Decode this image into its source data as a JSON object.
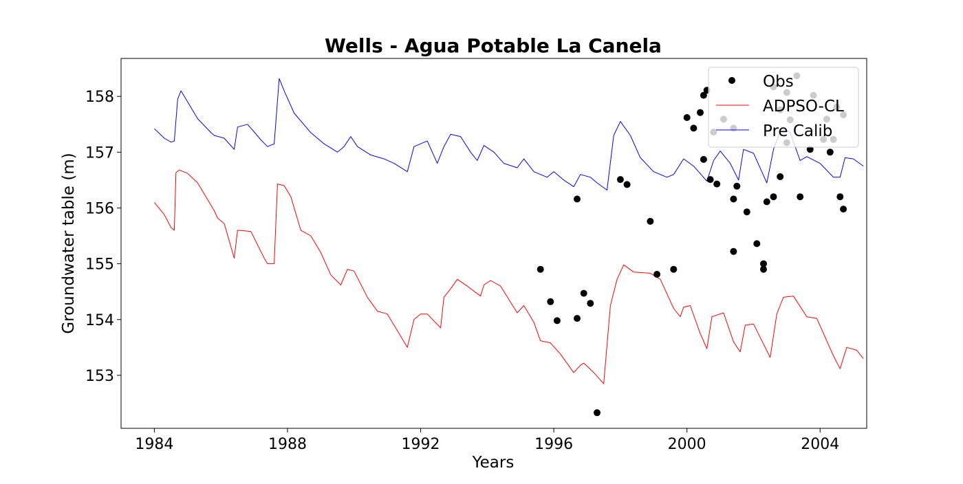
{
  "chart_data": {
    "type": "line",
    "title": "Wells - Agua Potable La Canela",
    "xlabel": "Years",
    "ylabel": "Groundwater table (m)",
    "xlim": [
      1983.0,
      2005.4
    ],
    "ylim": [
      152.05,
      158.68
    ],
    "xticks": [
      1984,
      1988,
      1992,
      1996,
      2000,
      2004
    ],
    "yticks": [
      153,
      154,
      155,
      156,
      157,
      158
    ],
    "grid": false,
    "legend_position": "top-right",
    "legend": [
      "Obs",
      "ADPSO-CL",
      "Pre Calib"
    ],
    "series": [
      {
        "name": "Obs",
        "kind": "scatter",
        "color": "#000000",
        "points": [
          [
            1995.6,
            154.9
          ],
          [
            1995.9,
            154.32
          ],
          [
            1996.1,
            153.98
          ],
          [
            1996.7,
            154.02
          ],
          [
            1996.7,
            156.16
          ],
          [
            1996.9,
            154.47
          ],
          [
            1997.1,
            154.29
          ],
          [
            1997.3,
            152.33
          ],
          [
            1998.0,
            156.51
          ],
          [
            1998.2,
            156.42
          ],
          [
            1998.9,
            155.76
          ],
          [
            1999.1,
            154.81
          ],
          [
            1999.6,
            154.9
          ],
          [
            2000.0,
            157.62
          ],
          [
            2000.2,
            157.43
          ],
          [
            2000.4,
            157.71
          ],
          [
            2000.5,
            158.02
          ],
          [
            2000.5,
            156.87
          ],
          [
            2000.6,
            158.11
          ],
          [
            2000.7,
            156.51
          ],
          [
            2000.8,
            157.36
          ],
          [
            2000.9,
            156.43
          ],
          [
            2001.1,
            157.59
          ],
          [
            2001.4,
            157.43
          ],
          [
            2001.4,
            156.16
          ],
          [
            2001.4,
            155.22
          ],
          [
            2001.5,
            156.39
          ],
          [
            2001.8,
            155.93
          ],
          [
            2002.1,
            155.36
          ],
          [
            2002.3,
            155.0
          ],
          [
            2002.3,
            154.9
          ],
          [
            2002.4,
            156.11
          ],
          [
            2002.6,
            158.17
          ],
          [
            2002.6,
            156.2
          ],
          [
            2002.8,
            156.56
          ],
          [
            2002.8,
            157.76
          ],
          [
            2003.0,
            158.07
          ],
          [
            2003.0,
            157.17
          ],
          [
            2003.1,
            157.58
          ],
          [
            2003.3,
            158.37
          ],
          [
            2003.4,
            156.2
          ],
          [
            2003.7,
            157.05
          ],
          [
            2003.8,
            158.02
          ],
          [
            2004.1,
            157.23
          ],
          [
            2004.2,
            157.59
          ],
          [
            2004.3,
            157.0
          ],
          [
            2004.4,
            157.23
          ],
          [
            2004.5,
            157.81
          ],
          [
            2004.6,
            156.2
          ],
          [
            2004.7,
            157.67
          ],
          [
            2004.7,
            155.98
          ]
        ]
      },
      {
        "name": "ADPSO-CL",
        "kind": "line",
        "color": "#ff0000",
        "points": [
          [
            1984.0,
            156.1
          ],
          [
            1984.3,
            155.88
          ],
          [
            1984.5,
            155.65
          ],
          [
            1984.6,
            155.6
          ],
          [
            1984.65,
            156.63
          ],
          [
            1984.75,
            156.68
          ],
          [
            1985.0,
            156.62
          ],
          [
            1985.3,
            156.45
          ],
          [
            1985.8,
            155.95
          ],
          [
            1985.9,
            155.82
          ],
          [
            1986.1,
            155.72
          ],
          [
            1986.4,
            155.1
          ],
          [
            1986.5,
            155.6
          ],
          [
            1986.9,
            155.58
          ],
          [
            1987.3,
            155.1
          ],
          [
            1987.4,
            155.0
          ],
          [
            1987.6,
            155.0
          ],
          [
            1987.7,
            156.43
          ],
          [
            1987.9,
            156.4
          ],
          [
            1988.1,
            156.2
          ],
          [
            1988.4,
            155.6
          ],
          [
            1988.7,
            155.5
          ],
          [
            1989.0,
            155.2
          ],
          [
            1989.3,
            154.8
          ],
          [
            1989.6,
            154.62
          ],
          [
            1989.8,
            154.9
          ],
          [
            1990.0,
            154.87
          ],
          [
            1990.4,
            154.4
          ],
          [
            1990.7,
            154.15
          ],
          [
            1991.0,
            154.1
          ],
          [
            1991.3,
            153.8
          ],
          [
            1991.6,
            153.5
          ],
          [
            1991.8,
            154.0
          ],
          [
            1992.0,
            154.1
          ],
          [
            1992.2,
            154.1
          ],
          [
            1992.6,
            153.85
          ],
          [
            1992.7,
            154.4
          ],
          [
            1992.9,
            154.55
          ],
          [
            1993.1,
            154.72
          ],
          [
            1993.4,
            154.6
          ],
          [
            1993.8,
            154.42
          ],
          [
            1993.9,
            154.62
          ],
          [
            1994.1,
            154.7
          ],
          [
            1994.4,
            154.6
          ],
          [
            1994.9,
            154.12
          ],
          [
            1995.1,
            154.25
          ],
          [
            1995.4,
            153.95
          ],
          [
            1995.6,
            153.62
          ],
          [
            1995.9,
            153.58
          ],
          [
            1996.2,
            153.38
          ],
          [
            1996.6,
            153.05
          ],
          [
            1996.8,
            153.18
          ],
          [
            1996.9,
            153.22
          ],
          [
            1997.2,
            153.05
          ],
          [
            1997.5,
            152.85
          ],
          [
            1997.7,
            154.25
          ],
          [
            1997.9,
            154.72
          ],
          [
            1998.1,
            154.98
          ],
          [
            1998.4,
            154.85
          ],
          [
            1998.9,
            154.83
          ],
          [
            1999.2,
            154.72
          ],
          [
            1999.6,
            154.2
          ],
          [
            1999.8,
            154.05
          ],
          [
            1999.9,
            154.22
          ],
          [
            2000.1,
            154.25
          ],
          [
            2000.4,
            153.75
          ],
          [
            2000.6,
            153.48
          ],
          [
            2000.75,
            154.05
          ],
          [
            2001.1,
            154.12
          ],
          [
            2001.4,
            153.6
          ],
          [
            2001.6,
            153.42
          ],
          [
            2001.75,
            153.9
          ],
          [
            2002.0,
            153.92
          ],
          [
            2002.5,
            153.32
          ],
          [
            2002.7,
            154.1
          ],
          [
            2002.9,
            154.4
          ],
          [
            2003.2,
            154.42
          ],
          [
            2003.6,
            154.05
          ],
          [
            2003.9,
            154.02
          ],
          [
            2004.4,
            153.35
          ],
          [
            2004.6,
            153.12
          ],
          [
            2004.8,
            153.5
          ],
          [
            2005.1,
            153.45
          ],
          [
            2005.3,
            153.3
          ]
        ]
      },
      {
        "name": "Pre Calib",
        "kind": "line",
        "color": "#0000ff",
        "points": [
          [
            1984.0,
            157.42
          ],
          [
            1984.3,
            157.25
          ],
          [
            1984.5,
            157.18
          ],
          [
            1984.6,
            157.2
          ],
          [
            1984.7,
            157.95
          ],
          [
            1984.8,
            158.1
          ],
          [
            1985.0,
            157.9
          ],
          [
            1985.3,
            157.6
          ],
          [
            1985.7,
            157.35
          ],
          [
            1985.8,
            157.3
          ],
          [
            1986.1,
            157.25
          ],
          [
            1986.4,
            157.05
          ],
          [
            1986.5,
            157.45
          ],
          [
            1986.8,
            157.5
          ],
          [
            1987.2,
            157.22
          ],
          [
            1987.4,
            157.1
          ],
          [
            1987.6,
            157.15
          ],
          [
            1987.75,
            158.32
          ],
          [
            1987.9,
            158.1
          ],
          [
            1988.2,
            157.7
          ],
          [
            1988.7,
            157.35
          ],
          [
            1989.1,
            157.15
          ],
          [
            1989.5,
            157.0
          ],
          [
            1989.7,
            157.1
          ],
          [
            1989.9,
            157.28
          ],
          [
            1990.1,
            157.1
          ],
          [
            1990.5,
            156.95
          ],
          [
            1990.9,
            156.88
          ],
          [
            1991.2,
            156.8
          ],
          [
            1991.6,
            156.65
          ],
          [
            1991.8,
            157.1
          ],
          [
            1992.2,
            157.2
          ],
          [
            1992.5,
            156.8
          ],
          [
            1992.7,
            157.1
          ],
          [
            1992.9,
            157.32
          ],
          [
            1993.2,
            157.28
          ],
          [
            1993.5,
            157.0
          ],
          [
            1993.7,
            156.85
          ],
          [
            1993.9,
            157.12
          ],
          [
            1994.2,
            157.0
          ],
          [
            1994.5,
            156.8
          ],
          [
            1994.9,
            156.72
          ],
          [
            1995.1,
            156.88
          ],
          [
            1995.4,
            156.65
          ],
          [
            1995.8,
            156.55
          ],
          [
            1996.0,
            156.65
          ],
          [
            1996.3,
            156.5
          ],
          [
            1996.6,
            156.38
          ],
          [
            1996.8,
            156.6
          ],
          [
            1997.1,
            156.55
          ],
          [
            1997.3,
            156.45
          ],
          [
            1997.6,
            156.32
          ],
          [
            1997.8,
            157.3
          ],
          [
            1998.0,
            157.55
          ],
          [
            1998.3,
            157.3
          ],
          [
            1998.6,
            156.9
          ],
          [
            1999.0,
            156.65
          ],
          [
            1999.4,
            156.55
          ],
          [
            1999.6,
            156.6
          ],
          [
            1999.9,
            156.88
          ],
          [
            2000.2,
            156.75
          ],
          [
            2000.6,
            156.48
          ],
          [
            2000.8,
            156.85
          ],
          [
            2001.0,
            157.02
          ],
          [
            2001.3,
            156.8
          ],
          [
            2001.55,
            156.5
          ],
          [
            2001.7,
            157.05
          ],
          [
            2002.0,
            156.98
          ],
          [
            2002.4,
            156.45
          ],
          [
            2002.6,
            157.05
          ],
          [
            2002.85,
            157.45
          ],
          [
            2003.1,
            157.35
          ],
          [
            2003.4,
            156.85
          ],
          [
            2003.6,
            156.92
          ],
          [
            2004.0,
            156.8
          ],
          [
            2004.4,
            156.55
          ],
          [
            2004.6,
            156.55
          ],
          [
            2004.75,
            156.9
          ],
          [
            2005.0,
            156.88
          ],
          [
            2005.3,
            156.75
          ]
        ]
      }
    ]
  }
}
